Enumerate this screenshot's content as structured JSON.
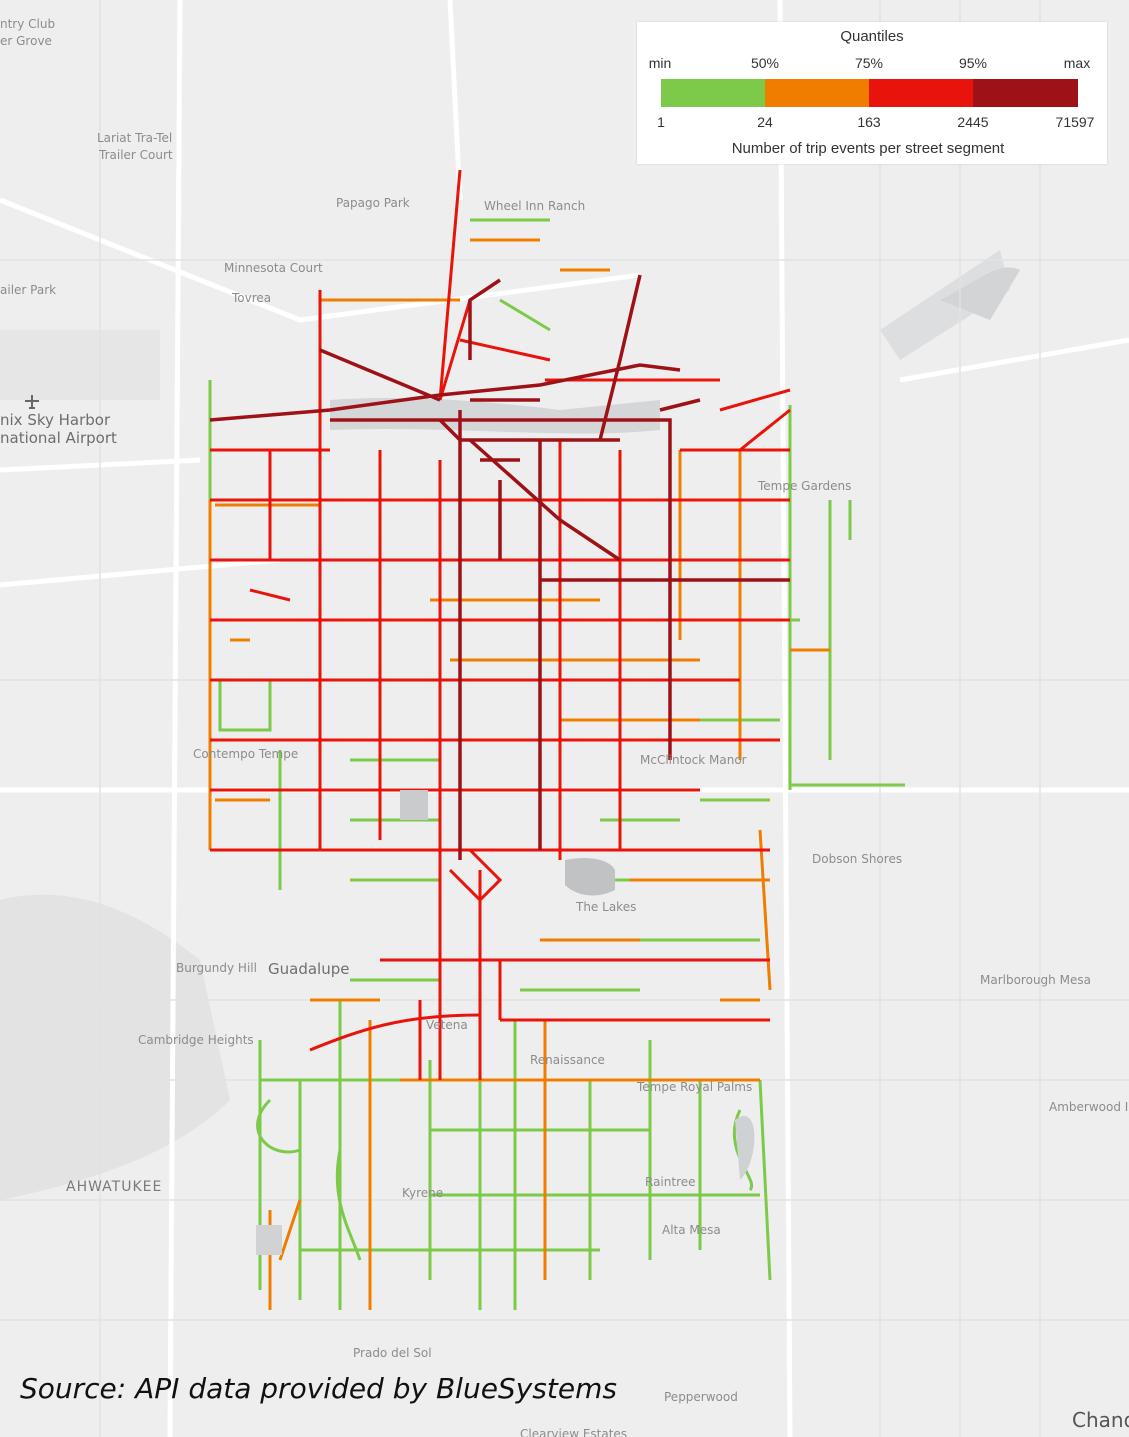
{
  "legend": {
    "title": "Quantiles",
    "quantile_labels": [
      "min",
      "50%",
      "75%",
      "95%",
      "max"
    ],
    "value_labels": [
      "1",
      "24",
      "163",
      "2445",
      "71597"
    ],
    "caption": "Number of trip events per street segment",
    "colors": [
      "#7dc94a",
      "#ef7d00",
      "#e8140c",
      "#9e1217"
    ]
  },
  "places": {
    "country_club": "ntry Club",
    "grove": "er Grove",
    "lariat": "Lariat Tra-Tel",
    "trailer_court": "Trailer Court",
    "papago": "Papago Park",
    "wheel_inn": "Wheel Inn Ranch",
    "minnesota": "Minnesota Court",
    "tovrea": "Tovrea",
    "trailer_park": "ailer Park",
    "airport_1": "nix Sky Harbor",
    "airport_2": "national Airport",
    "tempe_gardens": "Tempe Gardens",
    "contempo": "Contempo Tempe",
    "hank_manor": "McClintock Manor",
    "dobson": "Dobson Shores",
    "burgundy": "Burgundy Hill",
    "guadalupe": "Guadalupe",
    "marlborough": "Marlborough Mesa",
    "cambridge": "Cambridge Heights",
    "lakes": "The Lakes",
    "vetena": "Vetena",
    "renaissance": "Renaissance",
    "tempe_royal": "Tempe Royal Palms",
    "amberwood": "Amberwood I",
    "ahwatukee": "AHWATUKEE",
    "raintree": "Raintree",
    "kyrene": "Kyrene",
    "alta_mesa": "Alta Mesa",
    "prado": "Prado del Sol",
    "pepperwood": "Pepperwood",
    "chandler": "Chand",
    "clearview": "Clearview Estates"
  },
  "source": "Source: API data provided by BlueSystems"
}
